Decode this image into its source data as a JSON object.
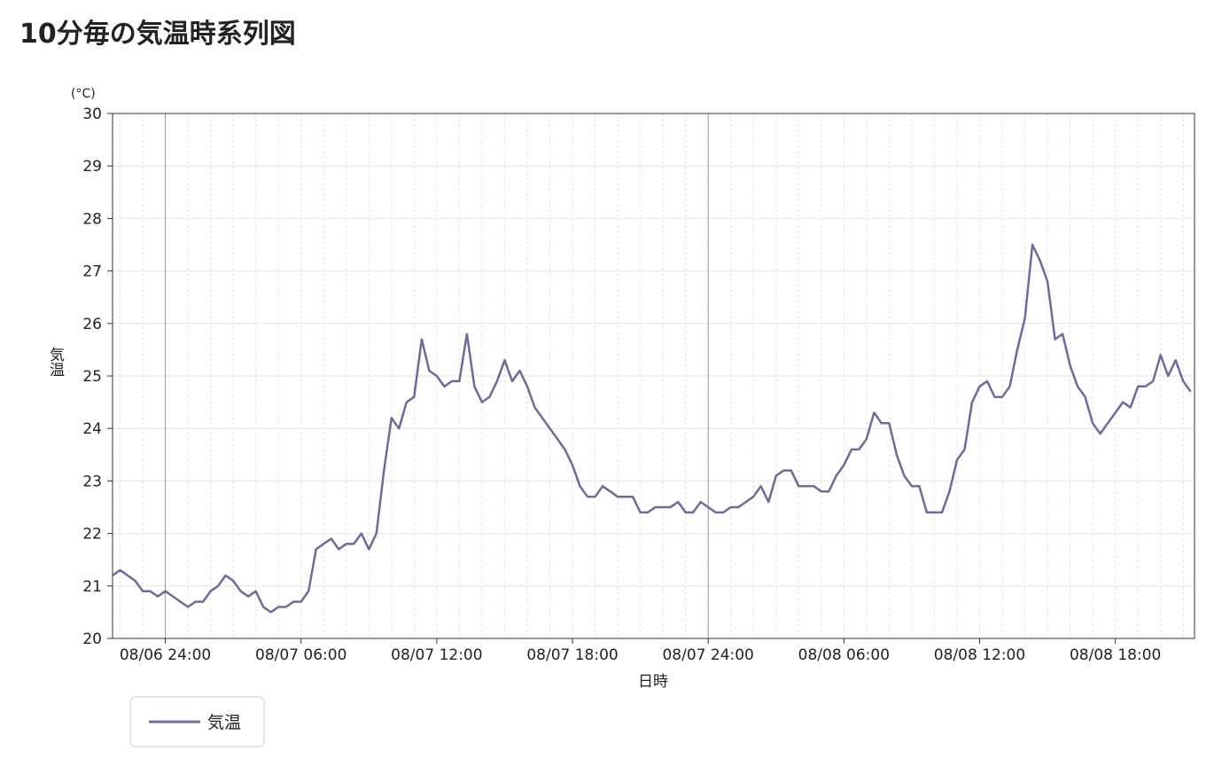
{
  "chart_data": {
    "type": "line",
    "title": "10分毎の気温時系列図",
    "y_unit": "(°C)",
    "ylabel": "気温",
    "xlabel": "日時",
    "xlim": [
      "08/06 21:40",
      "08/08 21:30"
    ],
    "xticks": [
      "08/06 24:00",
      "08/07 06:00",
      "08/07 12:00",
      "08/07 18:00",
      "08/07 24:00",
      "08/08 06:00",
      "08/08 12:00",
      "08/08 18:00"
    ],
    "ylim": [
      20,
      30
    ],
    "yticks": [
      20,
      21,
      22,
      23,
      24,
      25,
      26,
      27,
      28,
      29,
      30
    ],
    "grid": true,
    "x": [
      "08/06 21:40",
      "08/06 22:00",
      "08/06 22:20",
      "08/06 22:40",
      "08/06 23:00",
      "08/06 23:20",
      "08/06 23:40",
      "08/07 00:00",
      "08/07 00:20",
      "08/07 00:40",
      "08/07 01:00",
      "08/07 01:20",
      "08/07 01:40",
      "08/07 02:00",
      "08/07 02:20",
      "08/07 02:40",
      "08/07 03:00",
      "08/07 03:20",
      "08/07 03:40",
      "08/07 04:00",
      "08/07 04:20",
      "08/07 04:40",
      "08/07 05:00",
      "08/07 05:20",
      "08/07 05:40",
      "08/07 06:00",
      "08/07 06:20",
      "08/07 06:40",
      "08/07 07:00",
      "08/07 07:20",
      "08/07 07:40",
      "08/07 08:00",
      "08/07 08:20",
      "08/07 08:40",
      "08/07 09:00",
      "08/07 09:20",
      "08/07 09:40",
      "08/07 10:00",
      "08/07 10:20",
      "08/07 10:40",
      "08/07 11:00",
      "08/07 11:20",
      "08/07 11:40",
      "08/07 12:00",
      "08/07 12:20",
      "08/07 12:40",
      "08/07 13:00",
      "08/07 13:20",
      "08/07 13:40",
      "08/07 14:00",
      "08/07 14:20",
      "08/07 14:40",
      "08/07 15:00",
      "08/07 15:20",
      "08/07 15:40",
      "08/07 16:00",
      "08/07 16:20",
      "08/07 16:40",
      "08/07 17:00",
      "08/07 17:20",
      "08/07 17:40",
      "08/07 18:00",
      "08/07 18:20",
      "08/07 18:40",
      "08/07 19:00",
      "08/07 19:20",
      "08/07 19:40",
      "08/07 20:00",
      "08/07 20:20",
      "08/07 20:40",
      "08/07 21:00",
      "08/07 21:20",
      "08/07 21:40",
      "08/07 22:00",
      "08/07 22:20",
      "08/07 22:40",
      "08/07 23:00",
      "08/07 23:20",
      "08/07 23:40",
      "08/08 00:00",
      "08/08 00:20",
      "08/08 00:40",
      "08/08 01:00",
      "08/08 01:20",
      "08/08 01:40",
      "08/08 02:00",
      "08/08 02:20",
      "08/08 02:40",
      "08/08 03:00",
      "08/08 03:20",
      "08/08 03:40",
      "08/08 04:00",
      "08/08 04:20",
      "08/08 04:40",
      "08/08 05:00",
      "08/08 05:20",
      "08/08 05:40",
      "08/08 06:00",
      "08/08 06:20",
      "08/08 06:40",
      "08/08 07:00",
      "08/08 07:20",
      "08/08 07:40",
      "08/08 08:00",
      "08/08 08:20",
      "08/08 08:40",
      "08/08 09:00",
      "08/08 09:20",
      "08/08 09:40",
      "08/08 10:00",
      "08/08 10:20",
      "08/08 10:40",
      "08/08 11:00",
      "08/08 11:20",
      "08/08 11:40",
      "08/08 12:00",
      "08/08 12:20",
      "08/08 12:40",
      "08/08 13:00",
      "08/08 13:20",
      "08/08 13:40",
      "08/08 14:00",
      "08/08 14:20",
      "08/08 14:40",
      "08/08 15:00",
      "08/08 15:20",
      "08/08 15:40",
      "08/08 16:00",
      "08/08 16:20",
      "08/08 16:40",
      "08/08 17:00",
      "08/08 17:20",
      "08/08 17:40",
      "08/08 18:00",
      "08/08 18:20",
      "08/08 18:40",
      "08/08 19:00",
      "08/08 19:20",
      "08/08 19:40",
      "08/08 20:00",
      "08/08 20:20",
      "08/08 20:40",
      "08/08 21:00",
      "08/08 21:20"
    ],
    "series": [
      {
        "name": "気温",
        "color": "#6b6b9c",
        "values": [
          21.2,
          21.3,
          21.2,
          21.1,
          20.9,
          20.9,
          20.8,
          20.9,
          20.8,
          20.7,
          20.6,
          20.7,
          20.7,
          20.9,
          21.0,
          21.2,
          21.1,
          20.9,
          20.8,
          20.9,
          20.6,
          20.5,
          20.6,
          20.6,
          20.7,
          20.7,
          20.9,
          21.7,
          21.8,
          21.9,
          21.7,
          21.8,
          21.8,
          22.0,
          21.7,
          22.0,
          23.2,
          24.2,
          24.0,
          24.5,
          24.6,
          25.7,
          25.1,
          25.0,
          24.8,
          24.9,
          24.9,
          25.8,
          24.8,
          24.5,
          24.6,
          24.9,
          25.3,
          24.9,
          25.1,
          24.8,
          24.4,
          24.2,
          24.0,
          23.8,
          23.6,
          23.3,
          22.9,
          22.7,
          22.7,
          22.9,
          22.8,
          22.7,
          22.7,
          22.7,
          22.4,
          22.4,
          22.5,
          22.5,
          22.5,
          22.6,
          22.4,
          22.4,
          22.6,
          22.5,
          22.4,
          22.4,
          22.5,
          22.5,
          22.6,
          22.7,
          22.9,
          22.6,
          23.1,
          23.2,
          23.2,
          22.9,
          22.9,
          22.9,
          22.8,
          22.8,
          23.1,
          23.3,
          23.6,
          23.6,
          23.8,
          24.3,
          24.1,
          24.1,
          23.5,
          23.1,
          22.9,
          22.9,
          22.4,
          22.4,
          22.4,
          22.8,
          23.4,
          23.6,
          24.5,
          24.8,
          24.9,
          24.6,
          24.6,
          24.8,
          25.5,
          26.1,
          27.5,
          27.2,
          26.8,
          25.7,
          25.8,
          25.2,
          24.8,
          24.6,
          24.1,
          23.9,
          24.1,
          24.3,
          24.5,
          24.4,
          24.8,
          24.8,
          24.9,
          25.4,
          25.0,
          25.3,
          24.9,
          24.7
        ]
      }
    ]
  }
}
